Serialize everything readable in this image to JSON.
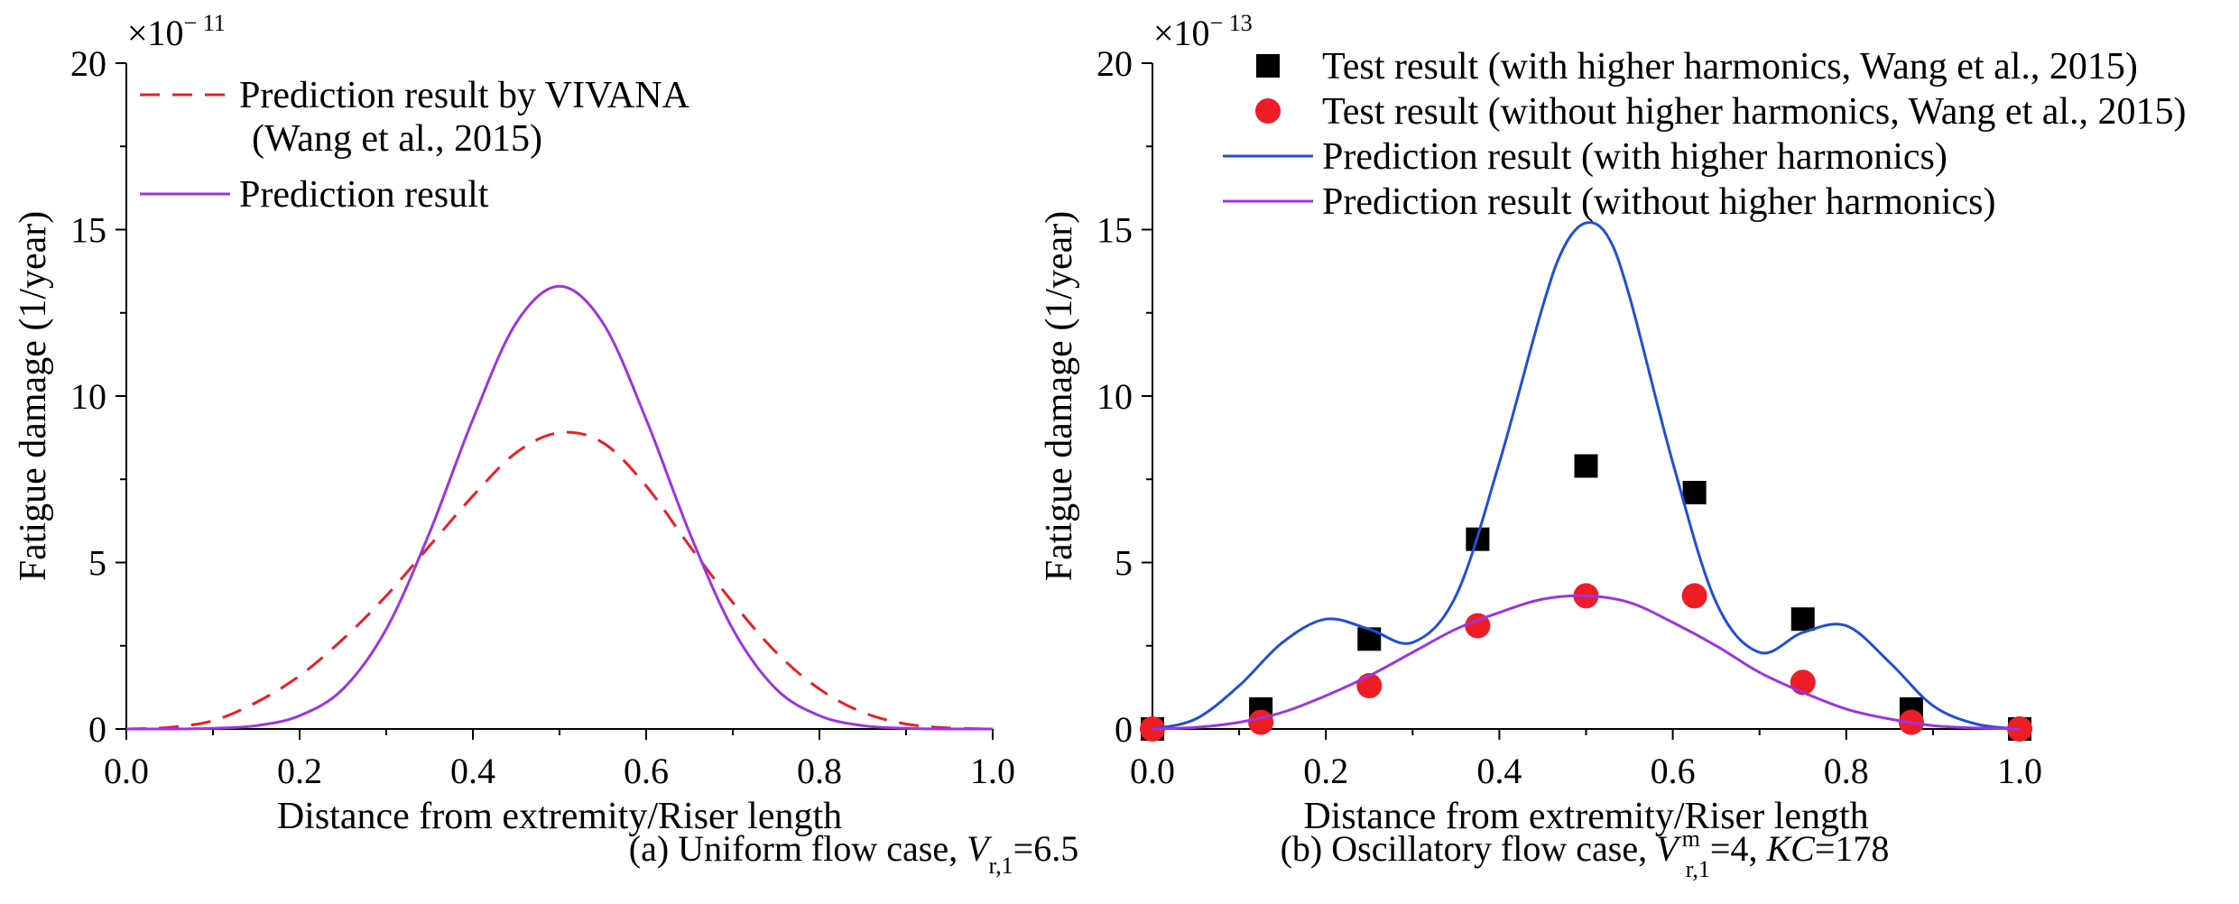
{
  "figure": {
    "exponent_base": "×10",
    "panels": [
      {
        "exponent": "− 11"
      },
      {
        "exponent": "− 13"
      }
    ]
  },
  "chart_data": [
    {
      "type": "line",
      "caption": {
        "prefix": "(a) Uniform flow case, ",
        "var": "V",
        "sub": "r,1",
        "suffix": "=6.5"
      },
      "xlabel": "Distance from extremity/Riser length",
      "ylabel": "Fatigue damage (1/year)",
      "xlim": [
        0,
        1.0
      ],
      "ylim": [
        0,
        20
      ],
      "x_ticks": [
        "0.0",
        "0.2",
        "0.4",
        "0.6",
        "0.8",
        "1.0"
      ],
      "y_ticks": [
        "0",
        "5",
        "10",
        "15",
        "20"
      ],
      "y_multiplier": "×10^-11",
      "legend": [
        {
          "label_lines": [
            "Prediction result by VIVANA",
            "(Wang et al., 2015)"
          ],
          "color": "#ee1c25",
          "style": "dashed"
        },
        {
          "label_lines": [
            "Prediction result"
          ],
          "color": "#9b35e0",
          "style": "solid"
        }
      ],
      "series": [
        {
          "name": "Prediction result by VIVANA (Wang et al., 2015)",
          "color": "#ee1c25",
          "style": "dashed",
          "x": [
            0.0,
            0.05,
            0.1,
            0.15,
            0.2,
            0.25,
            0.3,
            0.35,
            0.4,
            0.45,
            0.5,
            0.55,
            0.6,
            0.65,
            0.7,
            0.75,
            0.8,
            0.85,
            0.9,
            0.95,
            1.0
          ],
          "y": [
            0.0,
            0.05,
            0.25,
            0.8,
            1.6,
            2.7,
            4.0,
            5.5,
            7.0,
            8.3,
            8.9,
            8.6,
            7.3,
            5.5,
            3.8,
            2.3,
            1.2,
            0.5,
            0.15,
            0.03,
            0.0
          ]
        },
        {
          "name": "Prediction result",
          "color": "#9b35e0",
          "style": "solid",
          "x": [
            0.0,
            0.05,
            0.1,
            0.15,
            0.2,
            0.25,
            0.3,
            0.35,
            0.4,
            0.45,
            0.5,
            0.55,
            0.6,
            0.65,
            0.7,
            0.75,
            0.8,
            0.85,
            0.9,
            0.95,
            1.0
          ],
          "y": [
            0.0,
            0.0,
            0.02,
            0.1,
            0.4,
            1.2,
            3.0,
            5.9,
            9.3,
            12.2,
            13.3,
            12.2,
            9.3,
            5.9,
            3.0,
            1.2,
            0.4,
            0.1,
            0.02,
            0.0,
            0.0
          ]
        }
      ]
    },
    {
      "type": "line",
      "caption": {
        "prefix": "(b) Oscillatory flow case, ",
        "var": "V",
        "sup": "m",
        "sub": "r,1",
        "mid": "=4, ",
        "var2": "KC",
        "suffix": "=178"
      },
      "xlabel": "Distance from extremity/Riser length",
      "ylabel": "Fatigue damage (1/year)",
      "xlim": [
        0,
        1.0
      ],
      "ylim": [
        0,
        20
      ],
      "x_ticks": [
        "0.0",
        "0.2",
        "0.4",
        "0.6",
        "0.8",
        "1.0"
      ],
      "y_ticks": [
        "0",
        "5",
        "10",
        "15",
        "20"
      ],
      "y_multiplier": "×10^-13",
      "legend": [
        {
          "label_lines": [
            "Test result (with higher harmonics, Wang et al., 2015)"
          ],
          "color": "#000000",
          "style": "square"
        },
        {
          "label_lines": [
            "Test result (without higher harmonics, Wang et al., 2015)"
          ],
          "color": "#ee1c25",
          "style": "circle"
        },
        {
          "label_lines": [
            "Prediction result (with higher harmonics)"
          ],
          "color": "#1f4fd6",
          "style": "solid"
        },
        {
          "label_lines": [
            "Prediction result (without higher harmonics)"
          ],
          "color": "#9b35e0",
          "style": "solid"
        }
      ],
      "series": [
        {
          "name": "Test result (with higher harmonics, Wang et al., 2015)",
          "color": "#000000",
          "style": "square",
          "x": [
            0.0,
            0.125,
            0.25,
            0.375,
            0.5,
            0.625,
            0.75,
            0.875,
            1.0
          ],
          "y": [
            0.0,
            0.6,
            2.7,
            5.7,
            7.9,
            7.1,
            3.3,
            0.6,
            0.0
          ]
        },
        {
          "name": "Test result (without higher harmonics, Wang et al., 2015)",
          "color": "#ee1c25",
          "style": "circle",
          "x": [
            0.0,
            0.125,
            0.25,
            0.375,
            0.5,
            0.625,
            0.75,
            0.875,
            1.0
          ],
          "y": [
            0.0,
            0.2,
            1.3,
            3.1,
            4.0,
            4.0,
            1.4,
            0.2,
            0.0
          ]
        },
        {
          "name": "Prediction result (with higher harmonics)",
          "color": "#1f4fd6",
          "style": "solid",
          "x": [
            0.0,
            0.05,
            0.1,
            0.15,
            0.2,
            0.25,
            0.3,
            0.35,
            0.4,
            0.45,
            0.475,
            0.5,
            0.525,
            0.55,
            0.6,
            0.65,
            0.7,
            0.75,
            0.8,
            0.85,
            0.9,
            0.95,
            1.0
          ],
          "y": [
            0.0,
            0.3,
            1.3,
            2.6,
            3.3,
            3.0,
            2.6,
            4.0,
            8.0,
            12.7,
            14.5,
            15.2,
            14.8,
            13.0,
            8.0,
            3.8,
            2.3,
            2.9,
            3.1,
            2.0,
            0.7,
            0.15,
            0.0
          ]
        },
        {
          "name": "Prediction result (without higher harmonics)",
          "color": "#9b35e0",
          "style": "solid",
          "x": [
            0.0,
            0.05,
            0.1,
            0.15,
            0.2,
            0.25,
            0.3,
            0.35,
            0.4,
            0.45,
            0.5,
            0.55,
            0.6,
            0.65,
            0.7,
            0.75,
            0.8,
            0.85,
            0.9,
            0.95,
            1.0
          ],
          "y": [
            0.0,
            0.05,
            0.2,
            0.5,
            1.0,
            1.6,
            2.3,
            3.0,
            3.5,
            3.9,
            4.0,
            3.8,
            3.2,
            2.5,
            1.7,
            1.1,
            0.6,
            0.3,
            0.1,
            0.03,
            0.0
          ]
        }
      ]
    }
  ]
}
